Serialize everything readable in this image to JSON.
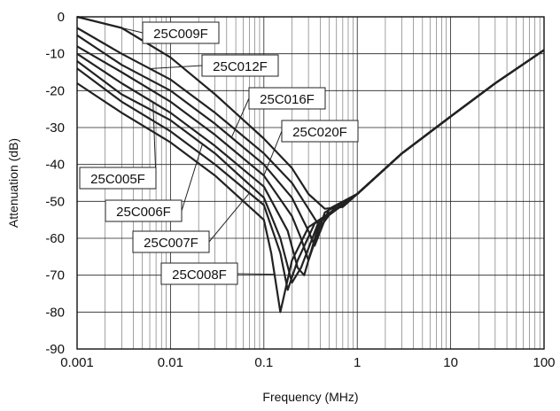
{
  "chart_data": {
    "type": "line",
    "title": "",
    "xlabel": "Frequency (MHz)",
    "ylabel": "Attenuation (dB)",
    "x_scale": "log",
    "xlim": [
      0.001,
      100
    ],
    "ylim": [
      -90,
      0
    ],
    "x_ticks": [
      0.001,
      0.01,
      0.1,
      1,
      10,
      100
    ],
    "x_tick_labels": [
      "0.001",
      "0.01",
      "0.1",
      "1",
      "10",
      "100"
    ],
    "y_ticks": [
      0,
      -10,
      -20,
      -30,
      -40,
      -50,
      -60,
      -70,
      -80,
      -90
    ],
    "y_tick_labels": [
      "0",
      "-10",
      "-20",
      "-30",
      "-40",
      "-50",
      "-60",
      "-70",
      "-80",
      "-90"
    ],
    "grid": true,
    "legend": "callout labels with leader lines",
    "series": [
      {
        "name": "25C009F",
        "x": [
          0.001,
          0.003,
          0.01,
          0.03,
          0.1,
          0.2,
          0.3,
          0.45,
          0.7,
          1,
          3,
          10,
          30,
          100
        ],
        "y": [
          0,
          -3,
          -11,
          -21,
          -33,
          -41,
          -48,
          -52,
          -51.5,
          -48,
          -37,
          -27,
          -18,
          -9
        ]
      },
      {
        "name": "25C012F",
        "x": [
          0.001,
          0.003,
          0.01,
          0.03,
          0.1,
          0.2,
          0.3,
          0.4,
          0.6,
          1,
          3,
          10,
          30,
          100
        ],
        "y": [
          -3,
          -10,
          -17,
          -26,
          -37,
          -45,
          -52,
          -57,
          -51,
          -48,
          -37,
          -27,
          -18,
          -9
        ]
      },
      {
        "name": "25C016F",
        "x": [
          0.001,
          0.003,
          0.01,
          0.03,
          0.1,
          0.2,
          0.3,
          0.35,
          0.5,
          1,
          3,
          10,
          30,
          100
        ],
        "y": [
          -5,
          -13,
          -20,
          -29,
          -40,
          -49,
          -58,
          -62,
          -52,
          -48,
          -37,
          -27,
          -18,
          -9
        ]
      },
      {
        "name": "25C020F",
        "x": [
          0.001,
          0.003,
          0.01,
          0.03,
          0.1,
          0.2,
          0.25,
          0.3,
          0.45,
          1,
          3,
          10,
          30,
          100
        ],
        "y": [
          -8,
          -15,
          -23,
          -32,
          -43,
          -54,
          -60,
          -66,
          -53,
          -48,
          -37,
          -27,
          -18,
          -9
        ]
      },
      {
        "name": "25C005F",
        "x": [
          0.001,
          0.003,
          0.01,
          0.03,
          0.1,
          0.18,
          0.23,
          0.27,
          0.4,
          1,
          3,
          10,
          30,
          100
        ],
        "y": [
          -10,
          -18,
          -26,
          -35,
          -46,
          -58,
          -68,
          -70,
          -55,
          -48,
          -37,
          -27,
          -18,
          -9
        ]
      },
      {
        "name": "25C006F",
        "x": [
          0.001,
          0.003,
          0.01,
          0.03,
          0.1,
          0.15,
          0.2,
          0.25,
          0.38,
          1,
          3,
          10,
          30,
          100
        ],
        "y": [
          -12,
          -21,
          -28,
          -37,
          -49,
          -60,
          -72,
          -68,
          -56,
          -48,
          -37,
          -27,
          -18,
          -9
        ]
      },
      {
        "name": "25C007F",
        "x": [
          0.001,
          0.003,
          0.01,
          0.03,
          0.1,
          0.15,
          0.18,
          0.23,
          0.35,
          1,
          3,
          10,
          30,
          100
        ],
        "y": [
          -14,
          -23,
          -31,
          -40,
          -51,
          -64,
          -74,
          -66,
          -56,
          -48,
          -37,
          -27,
          -18,
          -9
        ]
      },
      {
        "name": "25C008F",
        "x": [
          0.001,
          0.003,
          0.01,
          0.03,
          0.1,
          0.12,
          0.15,
          0.2,
          0.3,
          1,
          3,
          10,
          30,
          100
        ],
        "y": [
          -18,
          -26,
          -34,
          -43,
          -55,
          -64,
          -80,
          -66,
          -57,
          -48,
          -37,
          -27,
          -18,
          -9
        ]
      }
    ],
    "callouts": [
      {
        "series": "25C009F",
        "at_x": 0.0025
      },
      {
        "series": "25C012F",
        "at_x": 0.006
      },
      {
        "series": "25C016F",
        "at_x": 0.045
      },
      {
        "series": "25C020F",
        "at_x": 0.1
      },
      {
        "series": "25C005F",
        "at_x": 0.0065
      },
      {
        "series": "25C006F",
        "at_x": 0.022
      },
      {
        "series": "25C007F",
        "at_x": 0.07
      },
      {
        "series": "25C008F",
        "at_x": 0.13
      }
    ]
  }
}
